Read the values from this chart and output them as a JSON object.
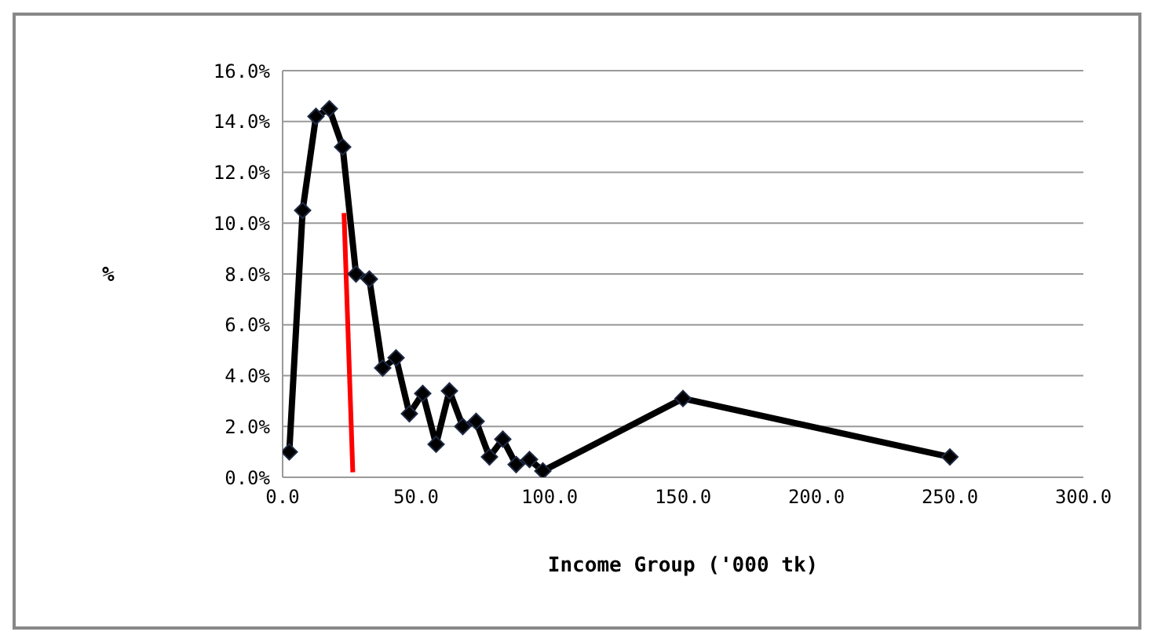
{
  "chart_data": {
    "type": "line",
    "xlabel": "Income Group ('000 tk)",
    "ylabel": "%",
    "series": [
      {
        "color": "#000000",
        "marker": "diamond",
        "x": [
          2.5,
          7.5,
          12.5,
          17.5,
          22.5,
          27.5,
          32.5,
          37.5,
          42.5,
          47.5,
          52.5,
          57.5,
          62.5,
          67.5,
          72.5,
          77.5,
          82.5,
          87.5,
          92.5,
          97.5,
          150,
          250
        ],
        "values": [
          1.0,
          10.5,
          14.2,
          14.5,
          13.0,
          8.0,
          7.8,
          4.3,
          4.7,
          2.5,
          3.3,
          1.3,
          3.4,
          2.0,
          2.2,
          0.8,
          1.5,
          0.5,
          0.7,
          0.25,
          3.1,
          0.8
        ]
      },
      {
        "color": "#ff0000",
        "marker": "none",
        "x": [
          23.0,
          26.3
        ],
        "values": [
          10.4,
          0.2
        ]
      }
    ],
    "xlim": [
      0,
      300
    ],
    "xticks": [
      {
        "value": 0,
        "label": "0.0"
      },
      {
        "value": 50,
        "label": "50.0"
      },
      {
        "value": 100,
        "label": "100.0"
      },
      {
        "value": 150,
        "label": "150.0"
      },
      {
        "value": 200,
        "label": "200.0"
      },
      {
        "value": 250,
        "label": "250.0"
      },
      {
        "value": 300,
        "label": "300.0"
      }
    ],
    "ylim": [
      0,
      16
    ],
    "yticks": [
      {
        "value": 0,
        "label": "0.0%"
      },
      {
        "value": 2,
        "label": "2.0%"
      },
      {
        "value": 4,
        "label": "4.0%"
      },
      {
        "value": 6,
        "label": "6.0%"
      },
      {
        "value": 8,
        "label": "8.0%"
      },
      {
        "value": 10,
        "label": "10.0%"
      },
      {
        "value": 12,
        "label": "12.0%"
      },
      {
        "value": 14,
        "label": "14.0%"
      },
      {
        "value": 16,
        "label": "16.0%"
      }
    ],
    "grid": "y"
  }
}
